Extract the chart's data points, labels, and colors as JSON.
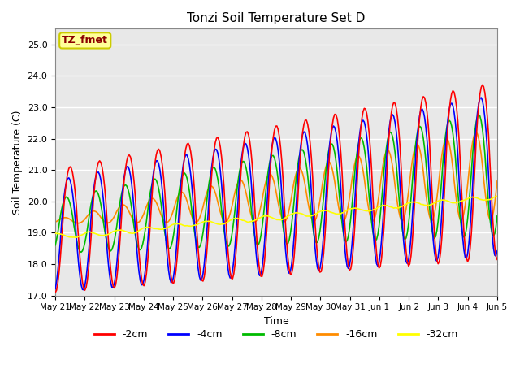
{
  "title": "Tonzi Soil Temperature Set D",
  "xlabel": "Time",
  "ylabel": "Soil Temperature (C)",
  "ylim": [
    17.0,
    25.5
  ],
  "yticks": [
    17.0,
    18.0,
    19.0,
    20.0,
    21.0,
    22.0,
    23.0,
    24.0,
    25.0
  ],
  "x_labels": [
    "May 21",
    "May 22",
    "May 23",
    "May 24",
    "May 25",
    "May 26",
    "May 27",
    "May 28",
    "May 29",
    "May 30",
    "May 31",
    "Jun 1",
    "Jun 2",
    "Jun 3",
    "Jun 4",
    "Jun 5"
  ],
  "annotation_text": "TZ_fmet",
  "annotation_color": "#8B0000",
  "annotation_bg": "#FFFF99",
  "annotation_border": "#CCCC00",
  "series": [
    {
      "label": "-2cm",
      "color": "#FF0000",
      "linewidth": 1.2
    },
    {
      "label": "-4cm",
      "color": "#0000FF",
      "linewidth": 1.2
    },
    {
      "label": "-8cm",
      "color": "#00BB00",
      "linewidth": 1.2
    },
    {
      "label": "-16cm",
      "color": "#FF8C00",
      "linewidth": 1.2
    },
    {
      "label": "-32cm",
      "color": "#FFFF00",
      "linewidth": 1.2
    }
  ],
  "bg_color": "#E8E8E8",
  "fig_bg_color": "#FFFFFF",
  "figsize": [
    6.4,
    4.8
  ],
  "dpi": 100
}
